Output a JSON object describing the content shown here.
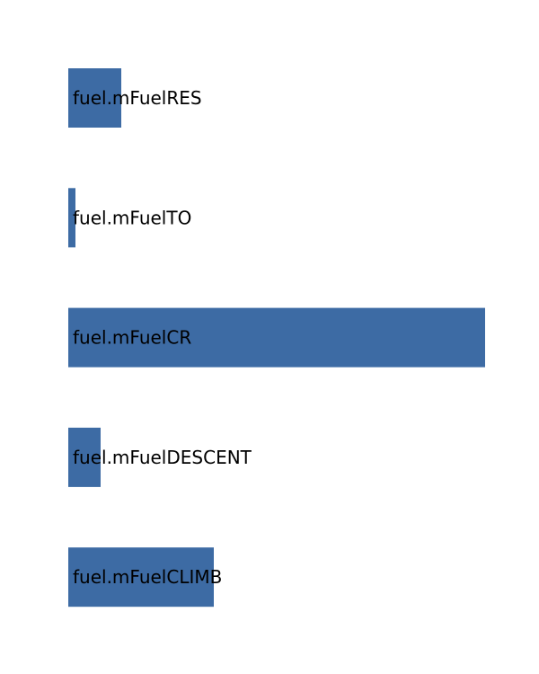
{
  "chart_data": {
    "type": "bar",
    "orientation": "horizontal",
    "categories": [
      "fuel.mFuelRES",
      "fuel.mFuelTO",
      "fuel.mFuelCR",
      "fuel.mFuelDESCENT",
      "fuel.mFuelCLIMB"
    ],
    "values": [
      59,
      8,
      464,
      36,
      162
    ],
    "xlim": [
      0,
      464
    ],
    "title": "",
    "xlabel": "",
    "ylabel": "",
    "grid": false,
    "legend": "none",
    "colors": {
      "bar": "#3d6ba4",
      "label": "#000000"
    }
  }
}
